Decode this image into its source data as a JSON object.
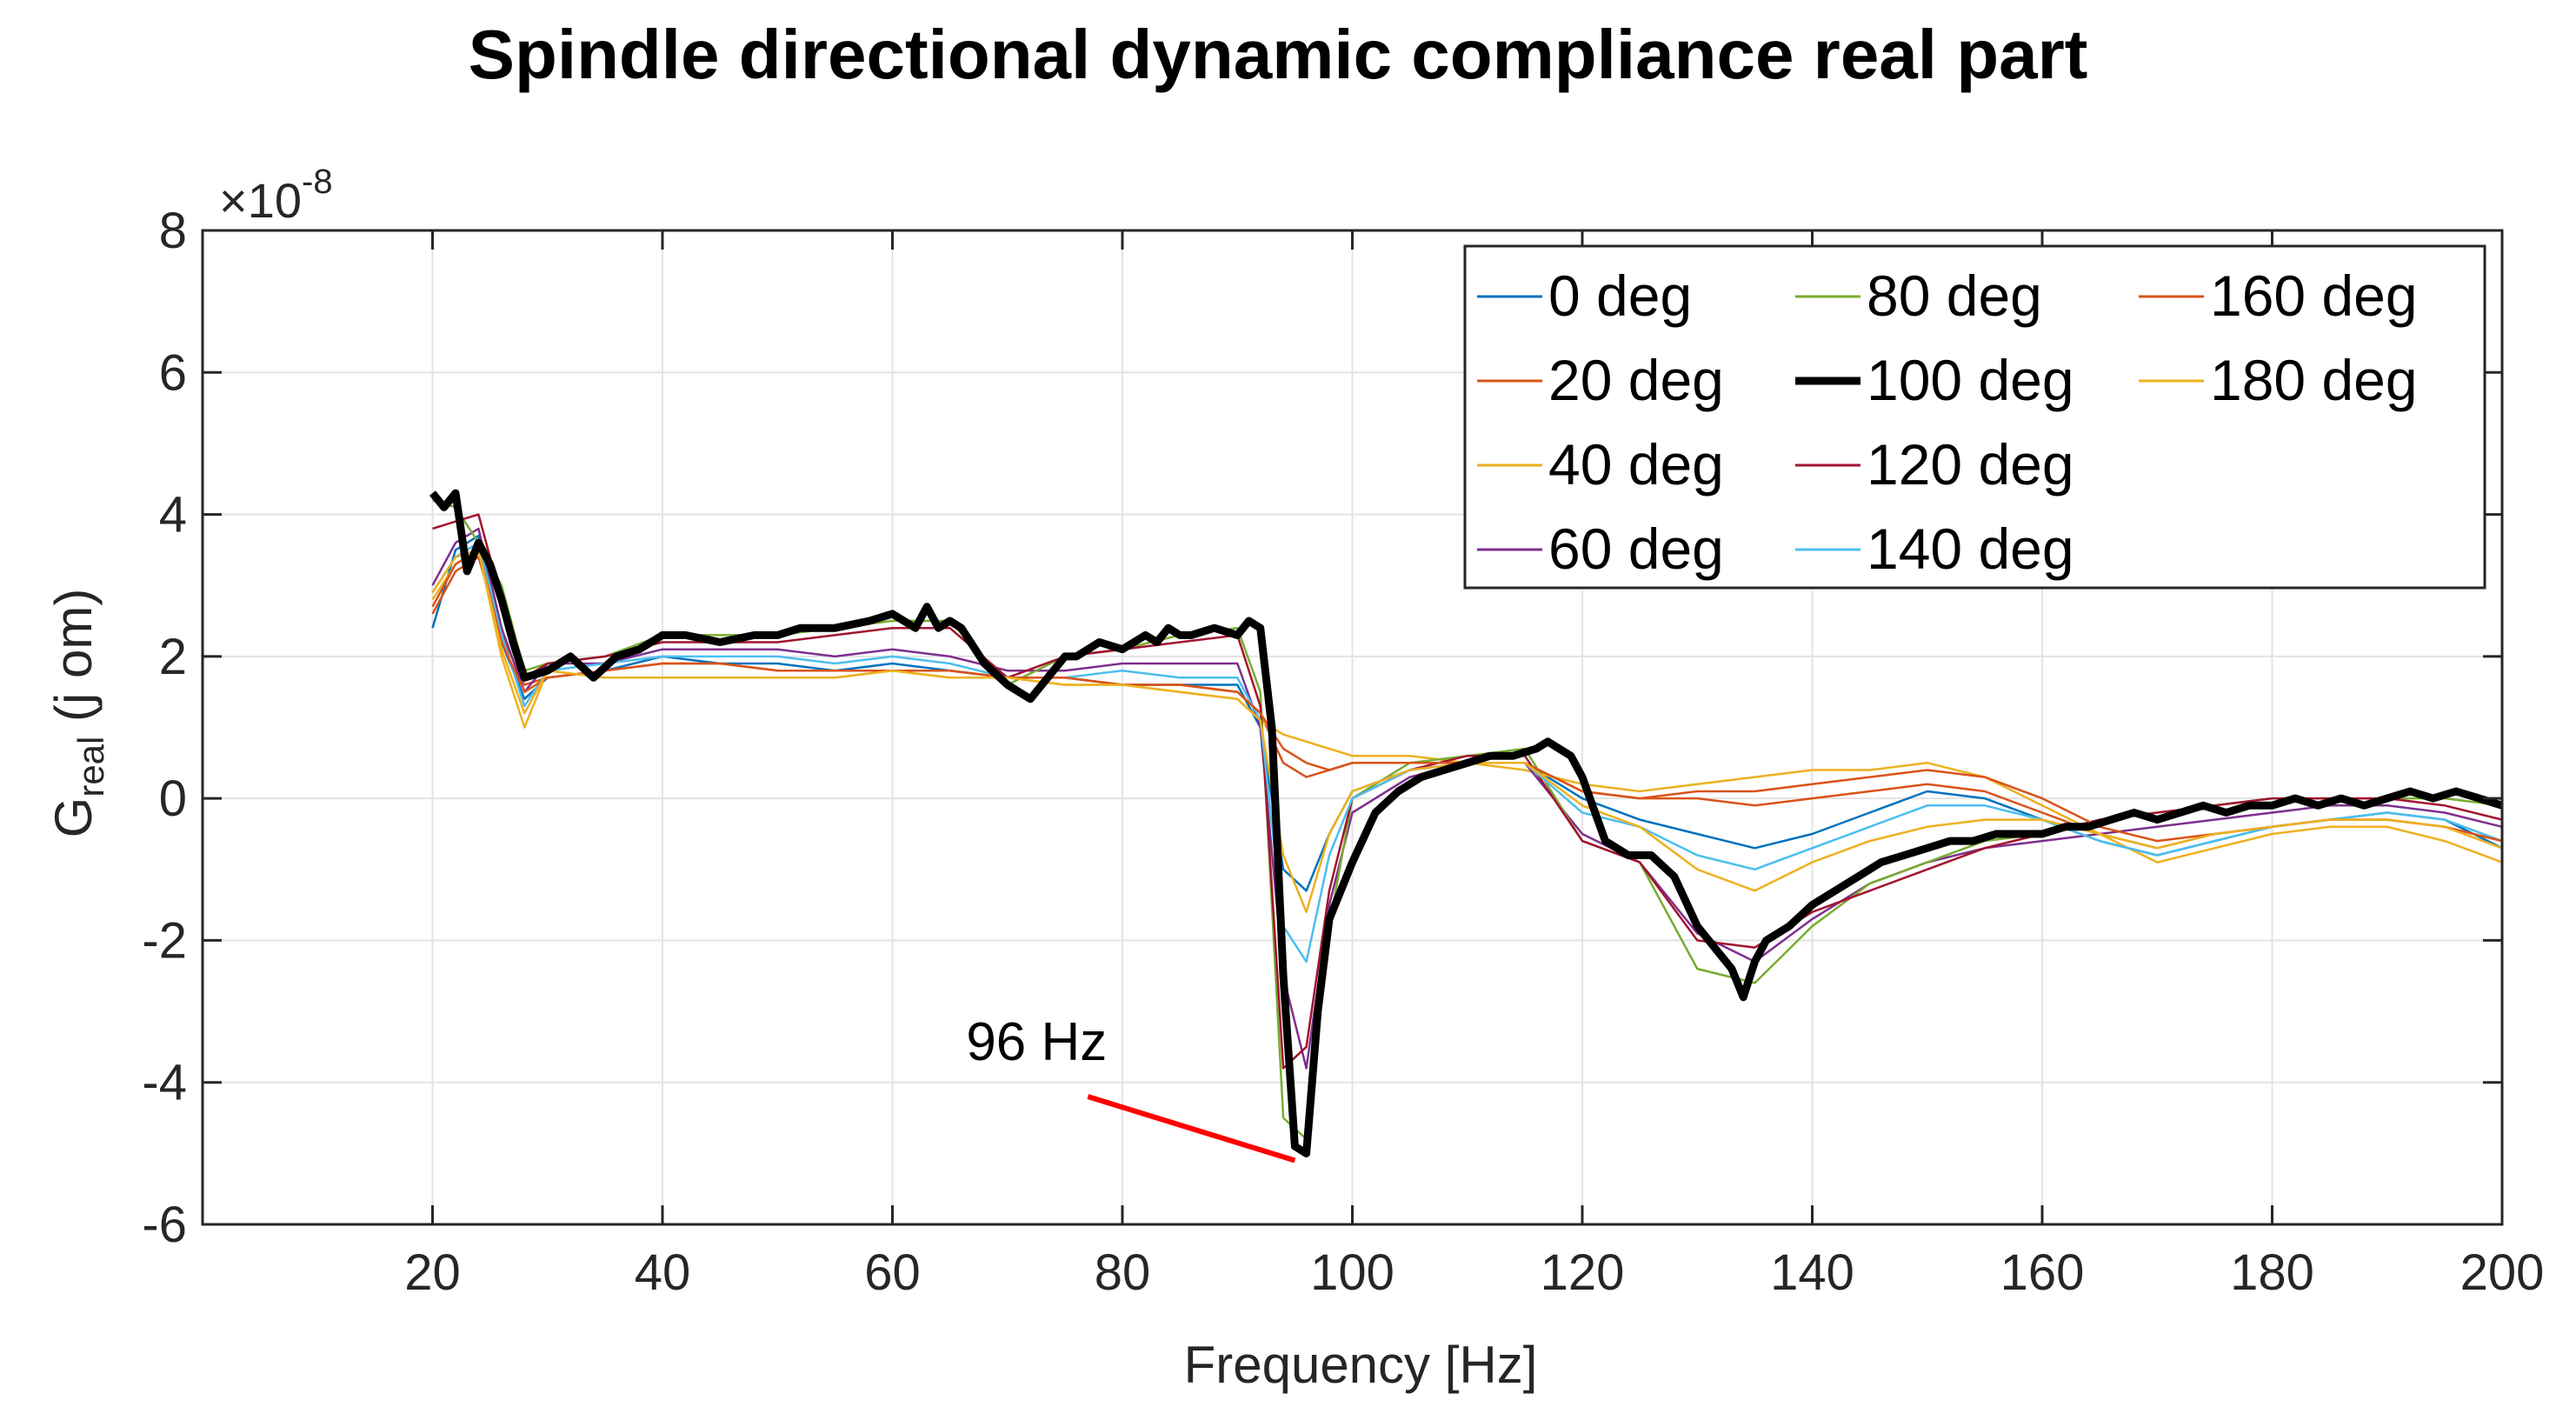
{
  "chart_data": {
    "type": "line",
    "title": "Spindle directional dynamic compliance real part",
    "xlabel": "Frequency [Hz]",
    "ylabel": {
      "main": "G",
      "sub": "real",
      "rest": " (j om)"
    },
    "exponent": {
      "prefix": "×10",
      "power": "-8"
    },
    "xlim": [
      0,
      200
    ],
    "ylim": [
      -6,
      8
    ],
    "xticks": [
      20,
      40,
      60,
      80,
      100,
      120,
      140,
      160,
      180,
      200
    ],
    "yticks": [
      -6,
      -4,
      -2,
      0,
      2,
      4,
      6,
      8
    ],
    "grid": true,
    "legend_position": "top-right",
    "annotation": {
      "text": "96 Hz",
      "line_from": [
        77,
        -4.2
      ],
      "line_to": [
        95,
        -5.1
      ],
      "color": "#ff0000"
    },
    "series": [
      {
        "name": "0 deg",
        "color": "#0072BD",
        "x": [
          20,
          22,
          24,
          26,
          28,
          30,
          35,
          40,
          45,
          50,
          55,
          60,
          65,
          70,
          75,
          80,
          85,
          90,
          92,
          94,
          96,
          98,
          100,
          105,
          110,
          115,
          120,
          125,
          130,
          135,
          140,
          145,
          150,
          155,
          160,
          165,
          170,
          175,
          180,
          185,
          190,
          195,
          200
        ],
        "y": [
          2.4,
          3.5,
          3.7,
          2.2,
          1.4,
          1.7,
          1.8,
          2.0,
          1.9,
          1.9,
          1.8,
          1.9,
          1.8,
          1.7,
          1.7,
          1.6,
          1.6,
          1.6,
          1.0,
          -1.0,
          -1.3,
          -0.5,
          0.1,
          0.4,
          0.5,
          0.5,
          0.0,
          -0.3,
          -0.5,
          -0.7,
          -0.5,
          -0.2,
          0.1,
          0.0,
          -0.3,
          -0.6,
          -0.8,
          -0.6,
          -0.4,
          -0.3,
          -0.2,
          -0.3,
          -0.7
        ]
      },
      {
        "name": "20 deg",
        "color": "#D95319",
        "x": [
          20,
          22,
          24,
          26,
          28,
          30,
          35,
          40,
          45,
          50,
          55,
          60,
          65,
          70,
          75,
          80,
          85,
          90,
          92,
          94,
          96,
          98,
          100,
          105,
          110,
          115,
          120,
          125,
          130,
          135,
          140,
          145,
          150,
          155,
          160,
          165,
          170,
          175,
          180,
          185,
          190,
          195,
          200
        ],
        "y": [
          2.6,
          3.2,
          3.4,
          2.3,
          1.6,
          1.7,
          1.8,
          1.9,
          1.9,
          1.8,
          1.8,
          1.8,
          1.8,
          1.7,
          1.7,
          1.6,
          1.6,
          1.5,
          1.2,
          0.5,
          0.3,
          0.4,
          0.5,
          0.5,
          0.5,
          0.5,
          0.1,
          0.0,
          0.0,
          -0.1,
          0.0,
          0.1,
          0.2,
          0.1,
          -0.2,
          -0.5,
          -0.7,
          -0.5,
          -0.4,
          -0.3,
          -0.3,
          -0.4,
          -0.6
        ]
      },
      {
        "name": "40 deg",
        "color": "#EDB120",
        "x": [
          20,
          22,
          24,
          26,
          28,
          30,
          35,
          40,
          45,
          50,
          55,
          60,
          65,
          70,
          75,
          80,
          85,
          90,
          92,
          94,
          96,
          98,
          100,
          105,
          110,
          115,
          120,
          125,
          130,
          135,
          140,
          145,
          150,
          155,
          160,
          165,
          170,
          175,
          180,
          185,
          190,
          195,
          200
        ],
        "y": [
          2.8,
          3.3,
          3.5,
          2.0,
          1.0,
          1.8,
          1.7,
          1.7,
          1.7,
          1.7,
          1.7,
          1.8,
          1.7,
          1.7,
          1.6,
          1.6,
          1.5,
          1.4,
          1.1,
          0.9,
          0.8,
          0.7,
          0.6,
          0.6,
          0.5,
          0.4,
          0.2,
          0.1,
          0.2,
          0.3,
          0.4,
          0.4,
          0.5,
          0.3,
          -0.1,
          -0.5,
          -0.9,
          -0.7,
          -0.5,
          -0.4,
          -0.4,
          -0.6,
          -0.9
        ]
      },
      {
        "name": "60 deg",
        "color": "#7E2F8E",
        "x": [
          20,
          22,
          24,
          26,
          28,
          30,
          35,
          40,
          45,
          50,
          55,
          60,
          65,
          70,
          75,
          80,
          85,
          90,
          92,
          94,
          96,
          98,
          100,
          105,
          110,
          115,
          120,
          125,
          130,
          135,
          140,
          145,
          150,
          155,
          160,
          165,
          170,
          175,
          180,
          185,
          190,
          195,
          200
        ],
        "y": [
          3.0,
          3.6,
          3.8,
          2.4,
          1.5,
          1.9,
          1.9,
          2.1,
          2.1,
          2.1,
          2.0,
          2.1,
          2.0,
          1.8,
          1.8,
          1.9,
          1.9,
          1.9,
          1.0,
          -2.5,
          -3.8,
          -1.5,
          -0.2,
          0.3,
          0.5,
          0.5,
          -0.5,
          -0.9,
          -1.9,
          -2.3,
          -1.7,
          -1.2,
          -0.9,
          -0.7,
          -0.6,
          -0.5,
          -0.4,
          -0.3,
          -0.2,
          -0.1,
          -0.1,
          -0.2,
          -0.4
        ]
      },
      {
        "name": "80 deg",
        "color": "#77AC30",
        "x": [
          20,
          22,
          24,
          26,
          28,
          30,
          35,
          40,
          45,
          50,
          55,
          60,
          65,
          70,
          75,
          80,
          85,
          90,
          92,
          94,
          96,
          98,
          100,
          105,
          110,
          115,
          120,
          125,
          130,
          135,
          140,
          145,
          150,
          155,
          160,
          165,
          170,
          175,
          180,
          185,
          190,
          195,
          200
        ],
        "y": [
          4.2,
          4.1,
          3.6,
          3.0,
          1.8,
          1.9,
          2.0,
          2.3,
          2.3,
          2.3,
          2.4,
          2.5,
          2.5,
          1.6,
          2.0,
          2.1,
          2.3,
          2.4,
          1.5,
          -4.5,
          -4.8,
          -1.8,
          0.0,
          0.5,
          0.6,
          0.7,
          -0.6,
          -0.9,
          -2.4,
          -2.6,
          -1.8,
          -1.2,
          -0.9,
          -0.6,
          -0.5,
          -0.3,
          -0.2,
          -0.1,
          0.0,
          0.0,
          0.0,
          0.0,
          -0.1
        ]
      },
      {
        "name": "100 deg",
        "color": "#000000",
        "x": [
          20,
          21,
          22,
          23,
          24,
          25,
          26,
          27,
          28,
          30,
          32,
          34,
          36,
          38,
          40,
          42,
          45,
          48,
          50,
          52,
          55,
          58,
          60,
          62,
          63,
          64,
          65,
          66,
          68,
          70,
          72,
          74,
          75,
          76,
          78,
          80,
          82,
          83,
          84,
          85,
          86,
          88,
          90,
          91,
          92,
          93,
          94,
          95,
          96,
          97,
          98,
          100,
          102,
          104,
          106,
          108,
          110,
          112,
          114,
          116,
          117,
          118,
          119,
          120,
          122,
          124,
          126,
          128,
          130,
          132,
          133,
          134,
          135,
          136,
          138,
          140,
          142,
          144,
          146,
          148,
          150,
          152,
          154,
          156,
          158,
          160,
          162,
          164,
          166,
          168,
          170,
          172,
          174,
          176,
          178,
          180,
          182,
          184,
          186,
          188,
          190,
          192,
          194,
          196,
          198,
          200
        ],
        "y": [
          4.3,
          4.1,
          4.3,
          3.2,
          3.6,
          3.3,
          2.8,
          2.2,
          1.7,
          1.8,
          2.0,
          1.7,
          2.0,
          2.1,
          2.3,
          2.3,
          2.2,
          2.3,
          2.3,
          2.4,
          2.4,
          2.5,
          2.6,
          2.4,
          2.7,
          2.4,
          2.5,
          2.4,
          1.9,
          1.6,
          1.4,
          1.8,
          2.0,
          2.0,
          2.2,
          2.1,
          2.3,
          2.2,
          2.4,
          2.3,
          2.3,
          2.4,
          2.3,
          2.5,
          2.4,
          1.0,
          -2.5,
          -4.9,
          -5.0,
          -3.0,
          -1.7,
          -0.9,
          -0.2,
          0.1,
          0.3,
          0.4,
          0.5,
          0.6,
          0.6,
          0.7,
          0.8,
          0.7,
          0.6,
          0.3,
          -0.6,
          -0.8,
          -0.8,
          -1.1,
          -1.8,
          -2.2,
          -2.4,
          -2.8,
          -2.3,
          -2.0,
          -1.8,
          -1.5,
          -1.3,
          -1.1,
          -0.9,
          -0.8,
          -0.7,
          -0.6,
          -0.6,
          -0.5,
          -0.5,
          -0.5,
          -0.4,
          -0.4,
          -0.3,
          -0.2,
          -0.3,
          -0.2,
          -0.1,
          -0.2,
          -0.1,
          -0.1,
          0.0,
          -0.1,
          0.0,
          -0.1,
          0.0,
          0.1,
          0.0,
          0.1,
          0.0,
          -0.1
        ]
      },
      {
        "name": "120 deg",
        "color": "#A2142F",
        "x": [
          20,
          22,
          24,
          26,
          28,
          30,
          35,
          40,
          45,
          50,
          55,
          60,
          65,
          70,
          75,
          80,
          85,
          90,
          92,
          94,
          96,
          98,
          100,
          105,
          110,
          115,
          120,
          125,
          130,
          135,
          140,
          145,
          150,
          155,
          160,
          165,
          170,
          175,
          180,
          185,
          190,
          195,
          200
        ],
        "y": [
          3.8,
          3.9,
          4.0,
          2.8,
          1.7,
          1.9,
          2.0,
          2.2,
          2.2,
          2.2,
          2.3,
          2.4,
          2.4,
          1.7,
          2.0,
          2.1,
          2.2,
          2.3,
          1.3,
          -3.8,
          -3.5,
          -1.3,
          0.0,
          0.4,
          0.6,
          0.6,
          -0.6,
          -0.9,
          -2.0,
          -2.1,
          -1.6,
          -1.3,
          -1.0,
          -0.7,
          -0.5,
          -0.3,
          -0.2,
          -0.1,
          0.0,
          0.0,
          0.0,
          -0.1,
          -0.3
        ]
      },
      {
        "name": "140 deg",
        "color": "#4DBEEE",
        "x": [
          20,
          22,
          24,
          26,
          28,
          30,
          35,
          40,
          45,
          50,
          55,
          60,
          65,
          70,
          75,
          80,
          85,
          90,
          92,
          94,
          96,
          98,
          100,
          105,
          110,
          115,
          120,
          125,
          130,
          135,
          140,
          145,
          150,
          155,
          160,
          165,
          170,
          175,
          180,
          185,
          190,
          195,
          200
        ],
        "y": [
          2.9,
          3.4,
          3.6,
          2.3,
          1.3,
          1.8,
          1.9,
          2.0,
          2.0,
          2.0,
          1.9,
          2.0,
          1.9,
          1.7,
          1.7,
          1.8,
          1.7,
          1.7,
          1.1,
          -1.8,
          -2.3,
          -0.8,
          0.0,
          0.4,
          0.5,
          0.5,
          -0.2,
          -0.4,
          -0.8,
          -1.0,
          -0.7,
          -0.4,
          -0.1,
          -0.1,
          -0.3,
          -0.6,
          -0.8,
          -0.6,
          -0.4,
          -0.3,
          -0.2,
          -0.3,
          -0.6
        ]
      },
      {
        "name": "160 deg",
        "color": "#D95319",
        "x": [
          20,
          22,
          24,
          26,
          28,
          30,
          35,
          40,
          45,
          50,
          55,
          60,
          65,
          70,
          75,
          80,
          85,
          90,
          92,
          94,
          96,
          98,
          100,
          105,
          110,
          115,
          120,
          125,
          130,
          135,
          140,
          145,
          150,
          155,
          160,
          165,
          170,
          175,
          180,
          185,
          190,
          195,
          200
        ],
        "y": [
          2.7,
          3.3,
          3.5,
          2.2,
          1.5,
          1.7,
          1.8,
          1.9,
          1.9,
          1.8,
          1.8,
          1.8,
          1.8,
          1.7,
          1.7,
          1.6,
          1.6,
          1.5,
          1.2,
          0.7,
          0.5,
          0.4,
          0.5,
          0.5,
          0.5,
          0.5,
          0.1,
          0.0,
          0.1,
          0.1,
          0.2,
          0.3,
          0.4,
          0.3,
          0.0,
          -0.4,
          -0.6,
          -0.5,
          -0.4,
          -0.3,
          -0.3,
          -0.4,
          -0.6
        ]
      },
      {
        "name": "180 deg",
        "color": "#EDB120",
        "x": [
          20,
          22,
          24,
          26,
          28,
          30,
          35,
          40,
          45,
          50,
          55,
          60,
          65,
          70,
          75,
          80,
          85,
          90,
          92,
          94,
          96,
          98,
          100,
          105,
          110,
          115,
          120,
          125,
          130,
          135,
          140,
          145,
          150,
          155,
          160,
          165,
          170,
          175,
          180,
          185,
          190,
          195,
          200
        ],
        "y": [
          2.9,
          3.4,
          3.5,
          2.1,
          1.2,
          1.8,
          1.7,
          1.7,
          1.7,
          1.7,
          1.7,
          1.8,
          1.7,
          1.7,
          1.6,
          1.6,
          1.5,
          1.4,
          1.1,
          -0.8,
          -1.6,
          -0.5,
          0.1,
          0.4,
          0.5,
          0.5,
          -0.1,
          -0.4,
          -1.0,
          -1.3,
          -0.9,
          -0.6,
          -0.4,
          -0.3,
          -0.3,
          -0.5,
          -0.7,
          -0.5,
          -0.4,
          -0.3,
          -0.3,
          -0.4,
          -0.7
        ]
      }
    ]
  }
}
